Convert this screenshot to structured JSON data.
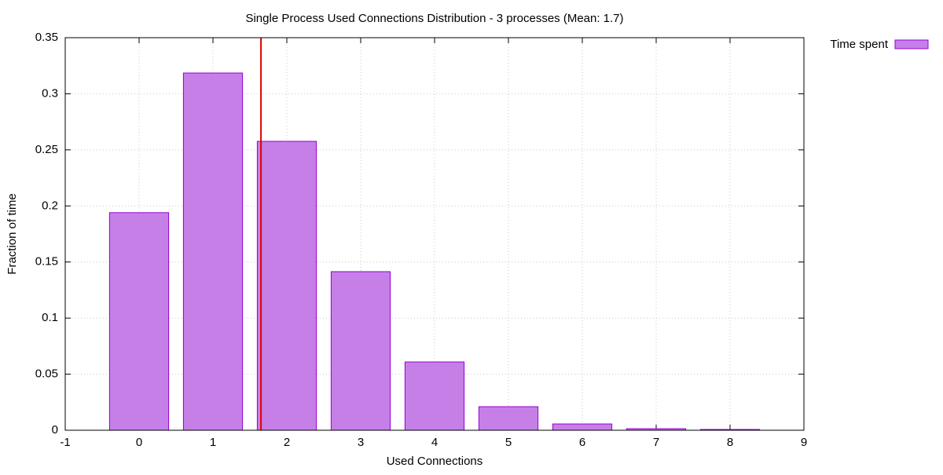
{
  "chart_data": {
    "type": "bar",
    "title": "Single Process Used Connections Distribution - 3 processes (Mean: 1.7)",
    "xlabel": "Used Connections",
    "ylabel": "Fraction of time",
    "x": [
      0,
      1,
      2,
      3,
      4,
      5,
      6,
      7,
      8
    ],
    "series": [
      {
        "name": "Time spent",
        "color": "#c77fe8",
        "edge_color": "#9400d3",
        "values": [
          0.194,
          0.3185,
          0.2576,
          0.1414,
          0.0609,
          0.021,
          0.0056,
          0.0014,
          0.0007
        ]
      }
    ],
    "bar_width": 0.8,
    "mean_line": {
      "x": 1.65,
      "color": "#e00000"
    },
    "xlim": [
      -1,
      9
    ],
    "xticks": [
      -1,
      0,
      1,
      2,
      3,
      4,
      5,
      6,
      7,
      8,
      9
    ],
    "ylim": [
      0,
      0.35
    ],
    "yticks": [
      0,
      0.05,
      0.1,
      0.15,
      0.2,
      0.25,
      0.3,
      0.35
    ],
    "grid": true,
    "legend": "outside-top-right"
  }
}
